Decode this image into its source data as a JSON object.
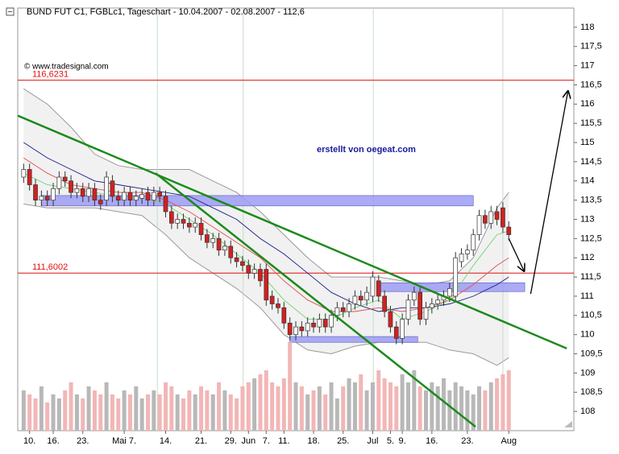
{
  "chart_data": {
    "type": "candlestick",
    "title": "BUND FUT C1, FGBLc1, Tageschart - 10.04.2007 - 02.08.2007 - 112,6",
    "source": "© www.tradesignal.com",
    "annotation": "erstellt von oegeat.com",
    "xlim": [
      -1,
      93
    ],
    "ylim": [
      107.5,
      118.5
    ],
    "xticks": [
      {
        "value": 1,
        "label": "10."
      },
      {
        "value": 5,
        "label": "16."
      },
      {
        "value": 10,
        "label": "23."
      },
      {
        "value": 17,
        "label": "Mai 7."
      },
      {
        "value": 24,
        "label": "14."
      },
      {
        "value": 30,
        "label": "21."
      },
      {
        "value": 35,
        "label": "29."
      },
      {
        "value": 38,
        "label": "Jun"
      },
      {
        "value": 41,
        "label": "7."
      },
      {
        "value": 44,
        "label": "11."
      },
      {
        "value": 49,
        "label": "18."
      },
      {
        "value": 54,
        "label": "25."
      },
      {
        "value": 59,
        "label": "Jul"
      },
      {
        "value": 62,
        "label": "5."
      },
      {
        "value": 64,
        "label": "9."
      },
      {
        "value": 69,
        "label": "16."
      },
      {
        "value": 75,
        "label": "23."
      },
      {
        "value": 82,
        "label": "Aug"
      }
    ],
    "yticks": [
      108,
      {
        "value": 108.5,
        "label": "108,5"
      },
      109,
      {
        "value": 109.5,
        "label": "109,5"
      },
      110,
      {
        "value": 110.5,
        "label": "110,5"
      },
      111,
      {
        "value": 111.5,
        "label": "111,5"
      },
      112,
      {
        "value": 112.5,
        "label": "112,5"
      },
      113,
      {
        "value": 113.5,
        "label": "113,5"
      },
      114,
      {
        "value": 114.5,
        "label": "114,5"
      },
      115,
      {
        "value": 115.5,
        "label": "115,5"
      },
      116,
      {
        "value": 116.5,
        "label": "116,5"
      },
      117,
      {
        "value": 117.5,
        "label": "117,5"
      },
      118
    ],
    "vgrid": [
      22.6,
      37.1,
      59.1,
      81.0
    ],
    "open": [
      114.1,
      114.3,
      113.9,
      113.5,
      113.6,
      113.5,
      113.8,
      114.1,
      114.0,
      113.7,
      113.8,
      113.6,
      113.8,
      113.5,
      113.5,
      114.0,
      113.6,
      113.5,
      113.7,
      113.5,
      113.55,
      113.7,
      113.5,
      113.7,
      113.6,
      113.2,
      112.9,
      113.0,
      112.9,
      112.8,
      112.9,
      112.6,
      112.4,
      112.5,
      112.2,
      112.3,
      112.0,
      111.9,
      111.8,
      111.6,
      111.7,
      111.7,
      111.0,
      110.8,
      110.7,
      110.3,
      110.0,
      110.2,
      110.1,
      110.3,
      110.2,
      110.4,
      110.2,
      110.5,
      110.7,
      110.6,
      110.8,
      111.0,
      110.9,
      111.0,
      111.4,
      111.0,
      110.6,
      110.2,
      109.9,
      110.4,
      110.9,
      111.1,
      110.4,
      110.7,
      110.8,
      110.9,
      111.0,
      111.0,
      111.9,
      112.1,
      112.2,
      112.6,
      113.1,
      112.9,
      113.2,
      113.3,
      112.8
    ],
    "high": [
      114.45,
      114.45,
      114.05,
      113.75,
      113.75,
      113.95,
      114.25,
      114.25,
      114.15,
      113.95,
      113.95,
      113.95,
      113.95,
      113.65,
      114.25,
      114.15,
      113.75,
      113.85,
      113.85,
      113.75,
      113.8,
      113.85,
      113.85,
      113.85,
      113.75,
      113.35,
      113.15,
      113.15,
      113.05,
      113.05,
      113.05,
      112.75,
      112.65,
      112.65,
      112.45,
      112.45,
      112.15,
      112.05,
      111.95,
      111.85,
      111.85,
      111.85,
      111.15,
      110.95,
      110.85,
      110.45,
      110.35,
      110.35,
      110.45,
      110.45,
      110.55,
      110.55,
      110.65,
      110.85,
      110.85,
      110.95,
      111.15,
      111.15,
      111.25,
      111.65,
      111.55,
      111.15,
      110.75,
      110.35,
      110.55,
      111.05,
      111.25,
      111.25,
      110.85,
      110.95,
      111.05,
      111.15,
      111.35,
      112.15,
      112.25,
      112.35,
      112.75,
      113.25,
      113.25,
      113.35,
      113.35,
      113.45,
      112.95
    ],
    "low": [
      113.95,
      113.75,
      113.35,
      113.35,
      113.35,
      113.35,
      113.65,
      113.85,
      113.55,
      113.55,
      113.45,
      113.45,
      113.35,
      113.25,
      113.35,
      113.45,
      113.35,
      113.35,
      113.35,
      113.35,
      113.4,
      113.35,
      113.35,
      113.45,
      113.05,
      112.75,
      112.75,
      112.75,
      112.65,
      112.65,
      112.45,
      112.25,
      112.25,
      112.05,
      112.05,
      111.85,
      111.75,
      111.65,
      111.45,
      111.45,
      111.25,
      110.75,
      110.65,
      110.55,
      110.15,
      109.85,
      109.85,
      109.95,
      109.95,
      110.05,
      110.05,
      110.05,
      110.05,
      110.35,
      110.45,
      110.45,
      110.65,
      110.75,
      110.75,
      110.85,
      110.85,
      110.45,
      110.05,
      109.75,
      109.75,
      110.25,
      110.75,
      110.25,
      110.25,
      110.55,
      110.65,
      110.75,
      110.85,
      110.85,
      111.75,
      111.95,
      112.05,
      112.45,
      112.75,
      112.75,
      112.85,
      112.65,
      112.45
    ],
    "close": [
      114.3,
      113.9,
      113.5,
      113.6,
      113.5,
      113.8,
      114.1,
      114.0,
      113.7,
      113.8,
      113.6,
      113.8,
      113.5,
      113.4,
      114.1,
      113.6,
      113.5,
      113.7,
      113.5,
      113.6,
      113.65,
      113.5,
      113.7,
      113.6,
      113.2,
      112.9,
      113.0,
      112.9,
      112.8,
      112.9,
      112.6,
      112.4,
      112.5,
      112.2,
      112.3,
      112.0,
      111.9,
      111.8,
      111.6,
      111.7,
      111.4,
      110.9,
      110.8,
      110.7,
      110.3,
      110.0,
      110.2,
      110.1,
      110.3,
      110.2,
      110.4,
      110.2,
      110.5,
      110.7,
      110.6,
      110.8,
      111.0,
      110.9,
      111.1,
      111.5,
      111.0,
      110.6,
      110.2,
      109.9,
      110.4,
      110.9,
      111.1,
      110.4,
      110.7,
      110.8,
      110.9,
      111.0,
      111.2,
      112.0,
      112.1,
      112.2,
      112.6,
      113.1,
      112.9,
      113.2,
      113.0,
      112.8,
      112.6
    ],
    "volume": [
      50,
      45,
      40,
      55,
      35,
      45,
      40,
      50,
      60,
      45,
      40,
      55,
      50,
      45,
      60,
      45,
      40,
      50,
      45,
      55,
      40,
      45,
      50,
      45,
      60,
      55,
      45,
      40,
      50,
      45,
      55,
      50,
      45,
      60,
      50,
      45,
      40,
      55,
      60,
      65,
      70,
      75,
      60,
      55,
      65,
      110,
      60,
      55,
      45,
      50,
      55,
      45,
      60,
      40,
      55,
      65,
      60,
      70,
      50,
      60,
      75,
      65,
      60,
      55,
      70,
      60,
      75,
      55,
      50,
      60,
      55,
      65,
      50,
      60,
      55,
      50,
      45,
      55,
      50,
      60,
      65,
      70,
      75
    ],
    "colors": {
      "up": "#ffffff",
      "down": "#d42020",
      "volume_up": "#b8b8b8",
      "volume_down": "#f2b6b6"
    },
    "indicator_x": [
      0,
      4,
      8,
      12,
      16,
      20,
      24,
      28,
      32,
      36,
      40,
      44,
      48,
      52,
      56,
      60,
      64,
      68,
      72,
      76,
      80,
      82
    ],
    "bands": {
      "color": "#9a9a9a",
      "fill": "#f1f1f1",
      "upper": [
        116.4,
        116.0,
        115.4,
        114.7,
        114.4,
        114.3,
        114.3,
        114.3,
        114.0,
        113.7,
        113.2,
        112.6,
        112.0,
        111.5,
        111.5,
        111.5,
        111.4,
        111.3,
        111.4,
        112.0,
        113.3,
        113.7
      ],
      "lower": [
        113.4,
        113.3,
        113.3,
        113.3,
        113.2,
        113.1,
        112.6,
        112.0,
        111.6,
        111.2,
        110.7,
        110.0,
        109.6,
        109.5,
        109.7,
        109.8,
        109.8,
        109.8,
        109.6,
        109.5,
        109.2,
        109.4
      ]
    },
    "averages": [
      {
        "color": "#1a1a8c",
        "values": [
          115.0,
          114.6,
          114.3,
          114.0,
          113.9,
          113.8,
          113.7,
          113.6,
          113.3,
          113.0,
          112.5,
          112.1,
          111.6,
          111.1,
          110.8,
          110.6,
          110.7,
          110.7,
          110.8,
          111.0,
          111.3,
          111.5
        ]
      },
      {
        "color": "#e05050",
        "values": [
          114.6,
          114.2,
          113.9,
          113.8,
          113.7,
          113.7,
          113.5,
          113.2,
          112.8,
          112.4,
          112.0,
          111.4,
          110.9,
          110.6,
          110.6,
          110.7,
          110.6,
          110.7,
          110.9,
          111.3,
          111.8,
          112.0
        ]
      },
      {
        "color": "#6fd46f",
        "values": [
          114.2,
          113.9,
          113.8,
          113.7,
          113.6,
          113.6,
          113.4,
          113.0,
          112.6,
          112.1,
          111.6,
          110.9,
          110.4,
          110.4,
          110.7,
          110.9,
          110.4,
          110.6,
          110.9,
          111.8,
          112.6,
          112.7
        ]
      }
    ],
    "trendlines": [
      {
        "color": "#1b8a1b",
        "x": [
          -1,
          91.8
        ],
        "y": [
          115.7,
          109.64
        ]
      },
      {
        "color": "#1b8a1b",
        "x": [
          22.3,
          76.4
        ],
        "y": [
          114.2,
          107.6
        ]
      }
    ],
    "zones": [
      {
        "color": "#9c9cf4",
        "x": [
          3,
          76
        ],
        "y": [
          113.35,
          113.62
        ]
      },
      {
        "color": "#9c9cf4",
        "x": [
          60.3,
          84.7
        ],
        "y": [
          111.12,
          111.35
        ]
      },
      {
        "color": "#9c9cf4",
        "x": [
          45,
          66.6
        ],
        "y": [
          109.8,
          109.95
        ]
      }
    ],
    "hline_color": "#e01010",
    "hlines": [
      {
        "value": 116.6231,
        "label": "116,6231"
      },
      {
        "value": 111.6002,
        "label": "111,6002"
      }
    ],
    "arrows": [
      {
        "x": [
          82,
          84.6
        ],
        "y": [
          112.5,
          111.65
        ]
      },
      {
        "x": [
          85.7,
          92.0
        ],
        "y": [
          111.06,
          116.34
        ]
      }
    ]
  }
}
